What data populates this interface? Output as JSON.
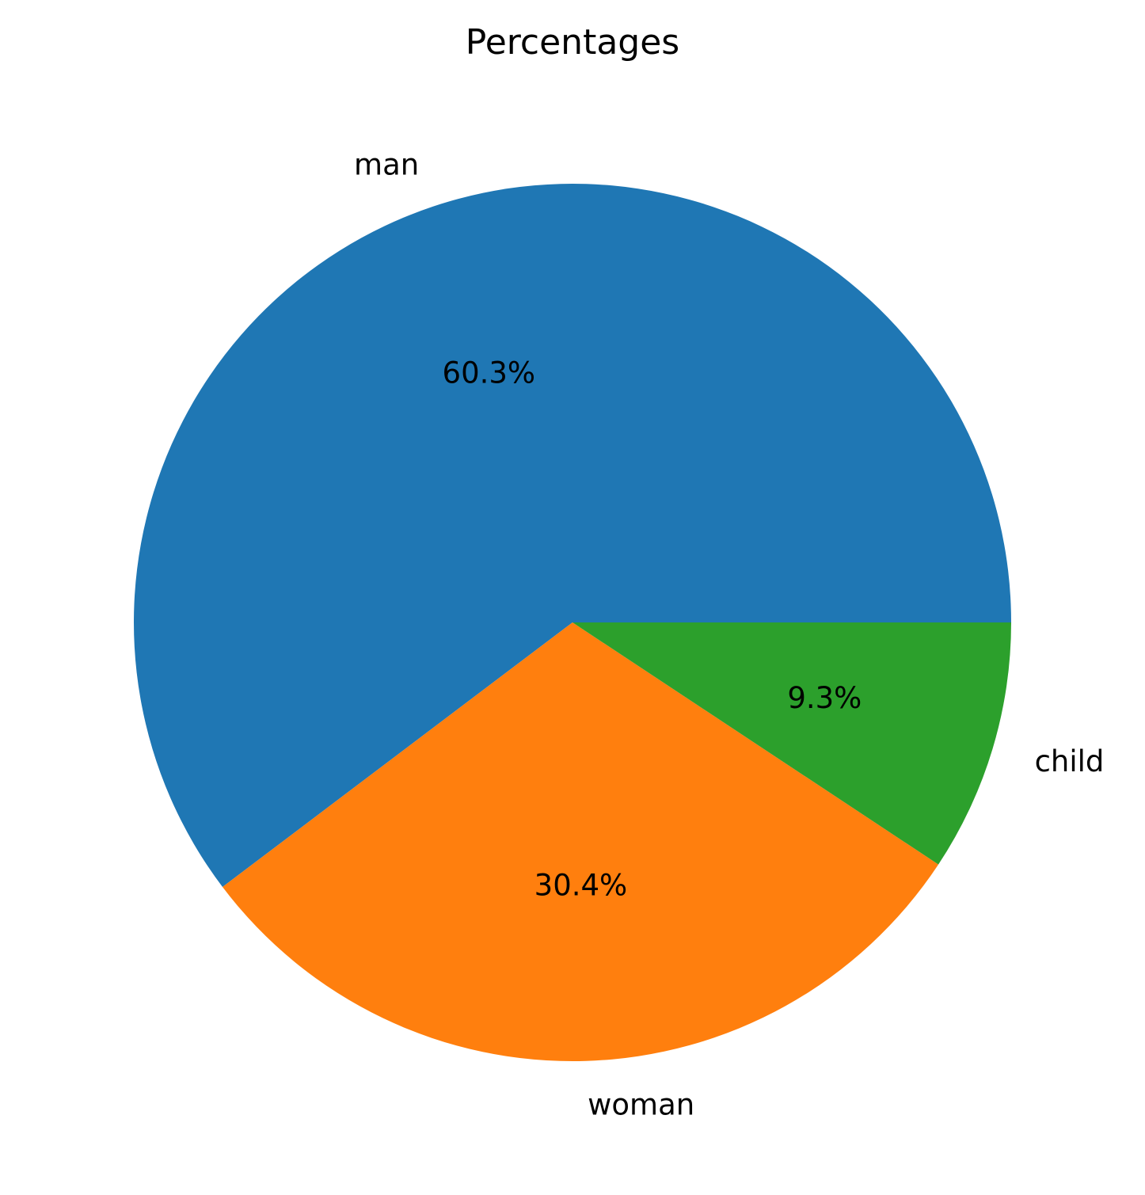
{
  "chart_data": {
    "type": "pie",
    "title": "Percentages",
    "labels": [
      "man",
      "woman",
      "child"
    ],
    "values": [
      60.3,
      30.4,
      9.3
    ],
    "percent_labels": [
      "60.3%",
      "30.4%",
      "9.3%"
    ],
    "colors": [
      "#1f77b4",
      "#ff7f0e",
      "#2ca02c"
    ],
    "legend": "none"
  }
}
